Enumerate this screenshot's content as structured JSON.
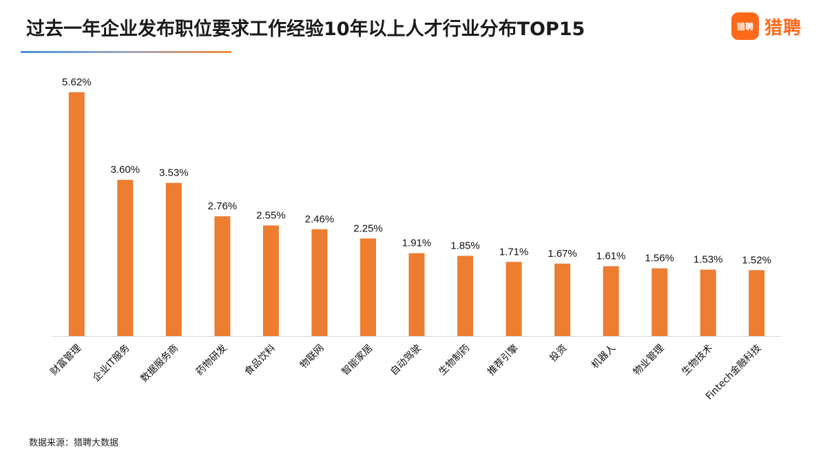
{
  "header": {
    "title": "过去一年企业发布职位要求工作经验10年以上人才行业分布TOP15",
    "logo_badge_text": "猎聘",
    "logo_text": "猎聘"
  },
  "footer": {
    "source": "数据来源：猎聘大数据"
  },
  "colors": {
    "bar": "#ED7D31",
    "brand": "#FF6A1A"
  },
  "chart_data": {
    "type": "bar",
    "categories": [
      "财富管理",
      "企业IT服务",
      "数据服务商",
      "药物研发",
      "食品饮料",
      "物联网",
      "智能家居",
      "自动驾驶",
      "生物制药",
      "推荐引擎",
      "投资",
      "机器人",
      "物业管理",
      "生物技术",
      "Fintech金融科技"
    ],
    "values": [
      5.62,
      3.6,
      3.53,
      2.76,
      2.55,
      2.46,
      2.25,
      1.91,
      1.85,
      1.71,
      1.67,
      1.61,
      1.56,
      1.53,
      1.52
    ],
    "data_labels": [
      "5.62%",
      "3.60%",
      "3.53%",
      "2.76%",
      "2.55%",
      "2.46%",
      "2.25%",
      "1.91%",
      "1.85%",
      "1.71%",
      "1.67%",
      "1.61%",
      "1.56%",
      "1.53%",
      "1.52%"
    ],
    "unit": "%",
    "ylim": [
      0,
      5.62
    ],
    "grid": false,
    "legend": "none"
  }
}
